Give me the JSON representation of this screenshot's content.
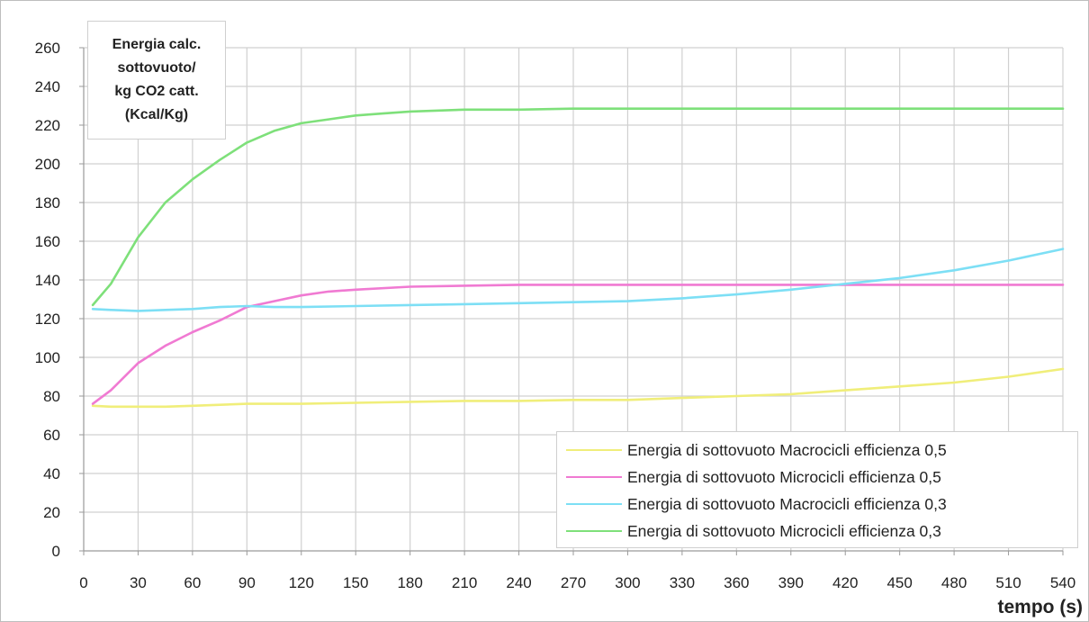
{
  "chart_data": {
    "type": "line",
    "ylabel": [
      "Energia calc.",
      "sottovuoto/",
      "kg CO2 catt.",
      "(Kcal/Kg)"
    ],
    "xlabel": "tempo (s)",
    "xlim": [
      0,
      540
    ],
    "ylim": [
      0,
      260
    ],
    "xticks": [
      0,
      30,
      60,
      90,
      120,
      150,
      180,
      210,
      240,
      270,
      300,
      330,
      360,
      390,
      420,
      450,
      480,
      510,
      540
    ],
    "yticks": [
      0,
      20,
      40,
      60,
      80,
      100,
      120,
      140,
      160,
      180,
      200,
      220,
      240,
      260
    ],
    "grid": true,
    "legend_position": "bottom-right",
    "series": [
      {
        "name": "Energia di sottovuoto Macrocicli efficienza 0,5",
        "color": "#f0ee7a",
        "x": [
          5,
          15,
          30,
          45,
          60,
          90,
          120,
          150,
          180,
          210,
          240,
          270,
          300,
          330,
          360,
          390,
          420,
          450,
          480,
          510,
          540
        ],
        "y": [
          75,
          74.5,
          74.5,
          74.5,
          75,
          76,
          76,
          76.5,
          77,
          77.5,
          77.5,
          78,
          78,
          79,
          80,
          81,
          83,
          85,
          87,
          90,
          94
        ]
      },
      {
        "name": "Energia di sottovuoto Microcicli efficienza 0,5",
        "color": "#f07ad2",
        "x": [
          5,
          15,
          30,
          45,
          60,
          75,
          90,
          105,
          120,
          135,
          150,
          180,
          210,
          240,
          300,
          360,
          420,
          480,
          540
        ],
        "y": [
          76,
          83,
          97,
          106,
          113,
          119,
          126,
          129,
          132,
          134,
          135,
          136.5,
          137,
          137.5,
          137.5,
          137.5,
          137.5,
          137.5,
          137.5
        ]
      },
      {
        "name": "Energia di sottovuoto Macrocicli efficienza 0,3",
        "color": "#7ddff5",
        "x": [
          5,
          15,
          30,
          45,
          60,
          75,
          90,
          105,
          120,
          150,
          180,
          210,
          240,
          270,
          300,
          330,
          360,
          390,
          420,
          450,
          480,
          510,
          540
        ],
        "y": [
          125,
          124.5,
          124,
          124.5,
          125,
          126,
          126.5,
          126,
          126,
          126.5,
          127,
          127.5,
          128,
          128.5,
          129,
          130.5,
          132.5,
          135,
          138,
          141,
          145,
          150,
          156
        ]
      },
      {
        "name": "Energia di sottovuoto Microcicli efficienza 0,3",
        "color": "#7ee07a",
        "x": [
          5,
          15,
          30,
          45,
          60,
          75,
          90,
          105,
          120,
          135,
          150,
          165,
          180,
          210,
          240,
          270,
          300,
          360,
          420,
          480,
          540
        ],
        "y": [
          127,
          138,
          162,
          180,
          192,
          202,
          211,
          217,
          221,
          223,
          225,
          226,
          227,
          228,
          228,
          228.5,
          228.5,
          228.5,
          228.5,
          228.5,
          228.5
        ]
      }
    ]
  }
}
